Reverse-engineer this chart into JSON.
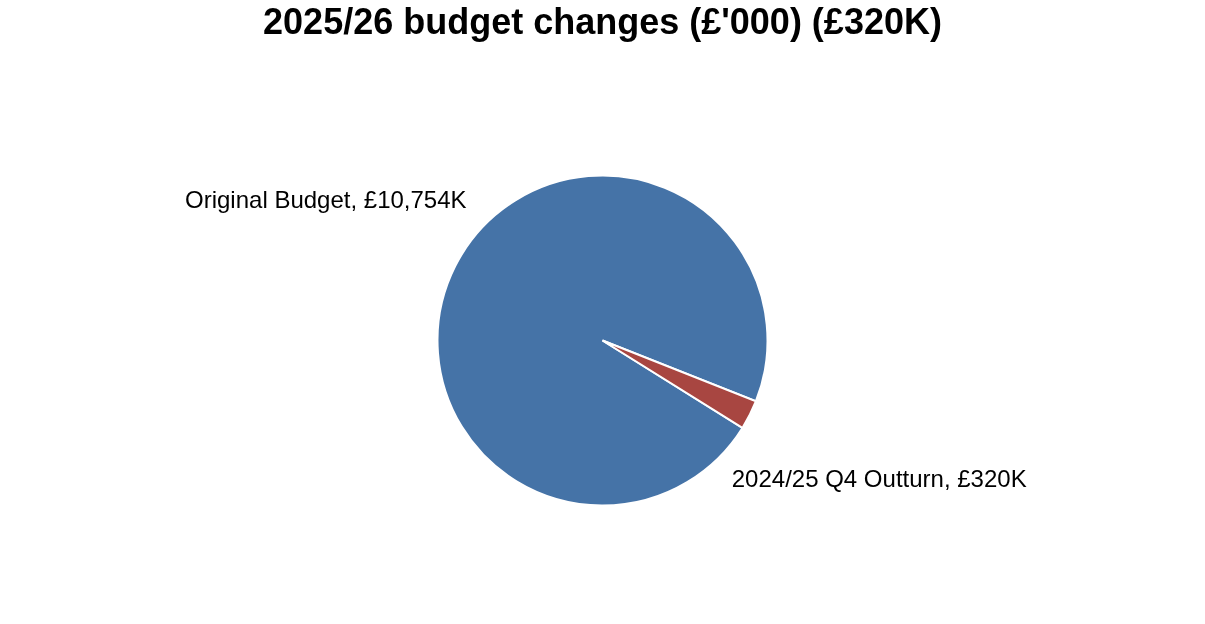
{
  "chart_data": {
    "type": "pie",
    "title": "2025/26 budget changes (£'000) (£320K)",
    "categories": [
      "Original Budget",
      "2024/25 Q4 Outturn"
    ],
    "values": [
      10754,
      320
    ],
    "colors": [
      "#4573a7",
      "#a84641"
    ],
    "value_labels": [
      "£10,754K",
      "£320K"
    ],
    "legend": false
  }
}
